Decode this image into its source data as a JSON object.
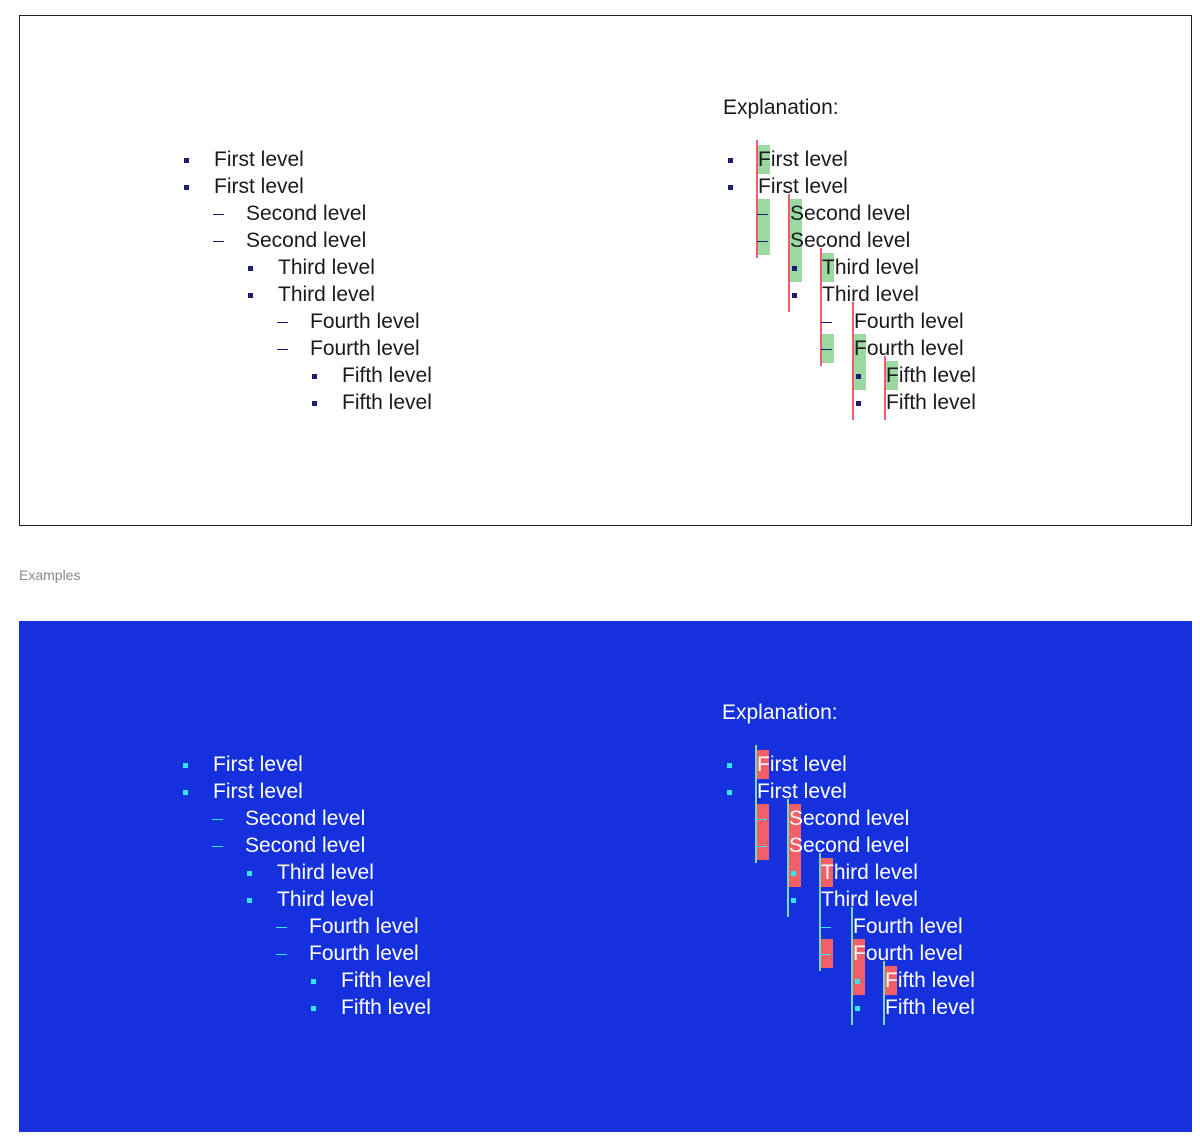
{
  "light_example": {
    "list": [
      {
        "level": 1,
        "text": "First level"
      },
      {
        "level": 1,
        "text": "First level"
      },
      {
        "level": 2,
        "text": "Second level"
      },
      {
        "level": 2,
        "text": "Second level"
      },
      {
        "level": 3,
        "text": "Third level"
      },
      {
        "level": 3,
        "text": "Third level"
      },
      {
        "level": 4,
        "text": "Fourth level"
      },
      {
        "level": 4,
        "text": "Fourth level"
      },
      {
        "level": 5,
        "text": "Fifth level"
      },
      {
        "level": 5,
        "text": "Fifth level"
      }
    ],
    "explanation_title": "Explanation:",
    "explanation_list": [
      {
        "level": 1,
        "text": "First level"
      },
      {
        "level": 1,
        "text": "First level"
      },
      {
        "level": 2,
        "text": "Second level"
      },
      {
        "level": 2,
        "text": "Second level"
      },
      {
        "level": 3,
        "text": "Third level"
      },
      {
        "level": 3,
        "text": "Third level"
      },
      {
        "level": 4,
        "text": "Fourth level"
      },
      {
        "level": 4,
        "text": "Fourth level"
      },
      {
        "level": 5,
        "text": "Fifth level"
      },
      {
        "level": 5,
        "text": "Fifth level"
      }
    ]
  },
  "section_caption": "Examples",
  "dark_example": {
    "list": [
      {
        "level": 1,
        "text": "First level"
      },
      {
        "level": 1,
        "text": "First level"
      },
      {
        "level": 2,
        "text": "Second level"
      },
      {
        "level": 2,
        "text": "Second level"
      },
      {
        "level": 3,
        "text": "Third level"
      },
      {
        "level": 3,
        "text": "Third level"
      },
      {
        "level": 4,
        "text": "Fourth level"
      },
      {
        "level": 4,
        "text": "Fourth level"
      },
      {
        "level": 5,
        "text": "Fifth level"
      },
      {
        "level": 5,
        "text": "Fifth level"
      }
    ],
    "explanation_title": "Explanation:",
    "explanation_list": [
      {
        "level": 1,
        "text": "First level"
      },
      {
        "level": 1,
        "text": "First level"
      },
      {
        "level": 2,
        "text": "Second level"
      },
      {
        "level": 2,
        "text": "Second level"
      },
      {
        "level": 3,
        "text": "Third level"
      },
      {
        "level": 3,
        "text": "Third level"
      },
      {
        "level": 4,
        "text": "Fourth level"
      },
      {
        "level": 4,
        "text": "Fourth level"
      },
      {
        "level": 5,
        "text": "Fifth level"
      },
      {
        "level": 5,
        "text": "Fifth level"
      }
    ]
  },
  "colors": {
    "dark_panel_background": "#1530dd",
    "light_bullet": "#1a1e6e",
    "dark_bullet": "#35e6f0",
    "light_guide_line": "#ef5d6d",
    "light_highlight": "#9ad9a1",
    "dark_guide_line": "#7ed6b0",
    "dark_highlight": "#f25f66"
  },
  "bullet_style_by_level": [
    "square-bullet",
    "dash-bullet",
    "square-bullet",
    "dash-bullet",
    "square-bullet"
  ]
}
